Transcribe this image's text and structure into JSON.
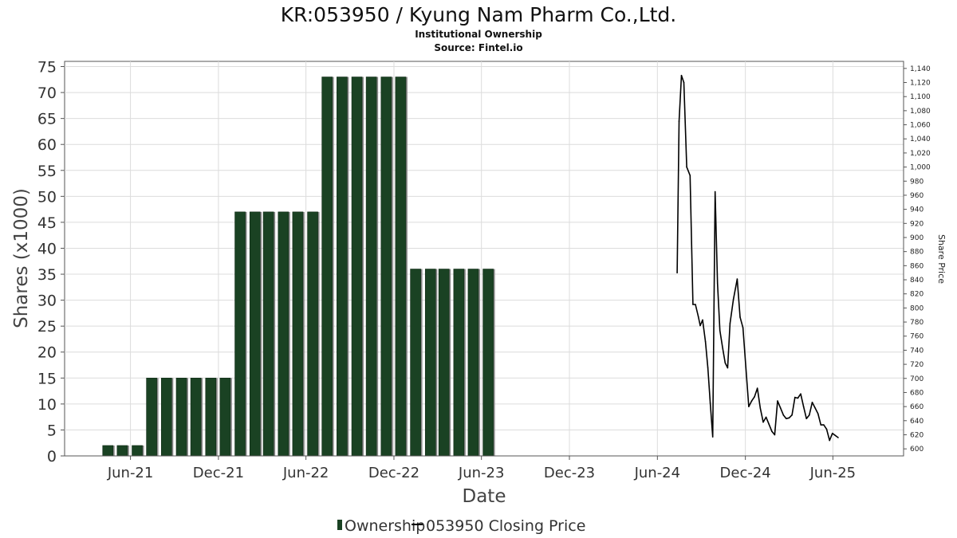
{
  "chart_data": {
    "type": "bar+line",
    "title": "KR:053950 / Kyung Nam Pharm Co.,Ltd.",
    "subtitle_lines": [
      "Institutional Ownership",
      "Source: Fintel.io"
    ],
    "xlabel": "Date",
    "ylabel_left": "Shares (x1000)",
    "ylabel_right": "Share Price",
    "x_range": [
      "2021-01-15",
      "2025-10-26"
    ],
    "x_ticks": [
      {
        "date": "2021-06-01",
        "label": "Jun-21"
      },
      {
        "date": "2021-12-01",
        "label": "Dec-21"
      },
      {
        "date": "2022-06-01",
        "label": "Jun-22"
      },
      {
        "date": "2022-12-01",
        "label": "Dec-22"
      },
      {
        "date": "2023-06-01",
        "label": "Jun-23"
      },
      {
        "date": "2023-12-01",
        "label": "Dec-23"
      },
      {
        "date": "2024-06-01",
        "label": "Jun-24"
      },
      {
        "date": "2024-12-01",
        "label": "Dec-24"
      },
      {
        "date": "2025-06-01",
        "label": "Jun-25"
      }
    ],
    "ylim_left": [
      0,
      76
    ],
    "y_ticks_left": [
      "0",
      "5",
      "10",
      "15",
      "20",
      "25",
      "30",
      "35",
      "40",
      "45",
      "50",
      "55",
      "60",
      "65",
      "70",
      "75"
    ],
    "ylim_right": [
      590,
      1150
    ],
    "y_ticks_right": [
      "600",
      "620",
      "640",
      "660",
      "680",
      "700",
      "720",
      "740",
      "760",
      "780",
      "800",
      "820",
      "840",
      "860",
      "880",
      "900",
      "920",
      "940",
      "960",
      "980",
      "1,000",
      "1,020",
      "1,040",
      "1,060",
      "1,080",
      "1,100",
      "1,120",
      "1,140"
    ],
    "grid": true,
    "legend_position": "bottom",
    "series": [
      {
        "name": "Ownership",
        "kind": "bar",
        "color": "#1a4223",
        "points": [
          {
            "date": "2021-04-15",
            "value": 2
          },
          {
            "date": "2021-05-15",
            "value": 2
          },
          {
            "date": "2021-06-15",
            "value": 2
          },
          {
            "date": "2021-07-15",
            "value": 15
          },
          {
            "date": "2021-08-15",
            "value": 15
          },
          {
            "date": "2021-09-15",
            "value": 15
          },
          {
            "date": "2021-10-15",
            "value": 15
          },
          {
            "date": "2021-11-15",
            "value": 15
          },
          {
            "date": "2021-12-15",
            "value": 15
          },
          {
            "date": "2022-01-15",
            "value": 47
          },
          {
            "date": "2022-02-15",
            "value": 47
          },
          {
            "date": "2022-03-15",
            "value": 47
          },
          {
            "date": "2022-04-15",
            "value": 47
          },
          {
            "date": "2022-05-15",
            "value": 47
          },
          {
            "date": "2022-06-15",
            "value": 47
          },
          {
            "date": "2022-07-15",
            "value": 73
          },
          {
            "date": "2022-08-15",
            "value": 73
          },
          {
            "date": "2022-09-15",
            "value": 73
          },
          {
            "date": "2022-10-15",
            "value": 73
          },
          {
            "date": "2022-11-15",
            "value": 73
          },
          {
            "date": "2022-12-15",
            "value": 73
          },
          {
            "date": "2023-01-15",
            "value": 36
          },
          {
            "date": "2023-02-15",
            "value": 36
          },
          {
            "date": "2023-03-15",
            "value": 36
          },
          {
            "date": "2023-04-15",
            "value": 36
          },
          {
            "date": "2023-05-15",
            "value": 36
          },
          {
            "date": "2023-06-15",
            "value": 36
          }
        ]
      },
      {
        "name": "053950 Closing Price",
        "kind": "line",
        "color": "#000000",
        "points": [
          {
            "date": "2024-07-12",
            "value": 850
          },
          {
            "date": "2024-07-16",
            "value": 1065
          },
          {
            "date": "2024-07-21",
            "value": 1130
          },
          {
            "date": "2024-07-26",
            "value": 1120
          },
          {
            "date": "2024-08-01",
            "value": 1000
          },
          {
            "date": "2024-08-08",
            "value": 988
          },
          {
            "date": "2024-08-14",
            "value": 805
          },
          {
            "date": "2024-08-19",
            "value": 805
          },
          {
            "date": "2024-08-25",
            "value": 788
          },
          {
            "date": "2024-08-29",
            "value": 775
          },
          {
            "date": "2024-09-03",
            "value": 783
          },
          {
            "date": "2024-09-09",
            "value": 752
          },
          {
            "date": "2024-09-14",
            "value": 715
          },
          {
            "date": "2024-09-19",
            "value": 665
          },
          {
            "date": "2024-09-24",
            "value": 617
          },
          {
            "date": "2024-09-29",
            "value": 965
          },
          {
            "date": "2024-10-04",
            "value": 835
          },
          {
            "date": "2024-10-09",
            "value": 768
          },
          {
            "date": "2024-10-15",
            "value": 742
          },
          {
            "date": "2024-10-20",
            "value": 722
          },
          {
            "date": "2024-10-25",
            "value": 715
          },
          {
            "date": "2024-10-30",
            "value": 778
          },
          {
            "date": "2024-11-06",
            "value": 812
          },
          {
            "date": "2024-11-14",
            "value": 841
          },
          {
            "date": "2024-11-20",
            "value": 787
          },
          {
            "date": "2024-11-26",
            "value": 772
          },
          {
            "date": "2024-12-02",
            "value": 715
          },
          {
            "date": "2024-12-08",
            "value": 660
          },
          {
            "date": "2024-12-14",
            "value": 668
          },
          {
            "date": "2024-12-20",
            "value": 674
          },
          {
            "date": "2024-12-26",
            "value": 686
          },
          {
            "date": "2025-01-01",
            "value": 658
          },
          {
            "date": "2025-01-07",
            "value": 638
          },
          {
            "date": "2025-01-13",
            "value": 645
          },
          {
            "date": "2025-01-19",
            "value": 635
          },
          {
            "date": "2025-01-25",
            "value": 625
          },
          {
            "date": "2025-01-31",
            "value": 620
          },
          {
            "date": "2025-02-06",
            "value": 668
          },
          {
            "date": "2025-02-12",
            "value": 658
          },
          {
            "date": "2025-02-18",
            "value": 648
          },
          {
            "date": "2025-02-24",
            "value": 643
          },
          {
            "date": "2025-03-02",
            "value": 644
          },
          {
            "date": "2025-03-08",
            "value": 648
          },
          {
            "date": "2025-03-14",
            "value": 673
          },
          {
            "date": "2025-03-20",
            "value": 672
          },
          {
            "date": "2025-03-26",
            "value": 678
          },
          {
            "date": "2025-04-01",
            "value": 660
          },
          {
            "date": "2025-04-07",
            "value": 643
          },
          {
            "date": "2025-04-13",
            "value": 648
          },
          {
            "date": "2025-04-19",
            "value": 666
          },
          {
            "date": "2025-04-25",
            "value": 658
          },
          {
            "date": "2025-05-01",
            "value": 650
          },
          {
            "date": "2025-05-07",
            "value": 634
          },
          {
            "date": "2025-05-13",
            "value": 634
          },
          {
            "date": "2025-05-19",
            "value": 628
          },
          {
            "date": "2025-05-25",
            "value": 612
          },
          {
            "date": "2025-05-31",
            "value": 622
          },
          {
            "date": "2025-06-06",
            "value": 619
          },
          {
            "date": "2025-06-12",
            "value": 616
          }
        ]
      }
    ],
    "legend": [
      {
        "label": "Ownership",
        "marker": "bar"
      },
      {
        "label": "053950 Closing Price",
        "marker": "line"
      }
    ]
  }
}
